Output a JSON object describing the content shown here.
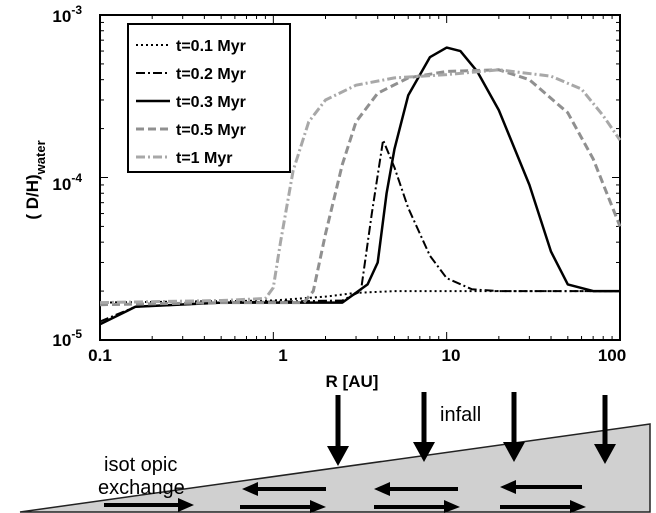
{
  "chart_data": {
    "type": "line",
    "xlabel": "R [AU]",
    "ylabel_main": "( D/H)",
    "ylabel_sub": "water",
    "x_scale": "log",
    "y_scale": "log",
    "xlim": [
      0.1,
      100
    ],
    "ylim": [
      1e-05,
      0.001
    ],
    "x_ticks": [
      {
        "value": 0.1,
        "label": "0.1"
      },
      {
        "value": 1,
        "label": "1"
      },
      {
        "value": 10,
        "label": "10"
      },
      {
        "value": 100,
        "label": "100"
      }
    ],
    "y_ticks": [
      {
        "value": 1e-05,
        "base": "10",
        "exp": "-5"
      },
      {
        "value": 0.0001,
        "base": "10",
        "exp": "-4"
      },
      {
        "value": 0.001,
        "base": "10",
        "exp": "-3"
      }
    ],
    "grid": false,
    "legend_position": "top-left",
    "series": [
      {
        "name": "t=0.1 Myr",
        "color": "#000000",
        "dash": "dotted",
        "points": [
          [
            0.1,
            1.7e-05
          ],
          [
            1,
            1.75e-05
          ],
          [
            2,
            1.85e-05
          ],
          [
            3,
            1.95e-05
          ],
          [
            5,
            2e-05
          ],
          [
            100,
            2e-05
          ]
        ]
      },
      {
        "name": "t=0.2 Myr",
        "color": "#000000",
        "dash": "dashdot",
        "points": [
          [
            0.1,
            1.3e-05
          ],
          [
            0.16,
            1.6e-05
          ],
          [
            0.5,
            1.7e-05
          ],
          [
            2.5,
            1.75e-05
          ],
          [
            3.2,
            2e-05
          ],
          [
            3.7,
            6e-05
          ],
          [
            4.3,
            0.00017
          ],
          [
            5,
            0.000115
          ],
          [
            6,
            6.5e-05
          ],
          [
            8,
            3.3e-05
          ],
          [
            10,
            2.4e-05
          ],
          [
            14,
            2.05e-05
          ],
          [
            20,
            2e-05
          ],
          [
            100,
            2e-05
          ]
        ]
      },
      {
        "name": "t=0.3 Myr",
        "color": "#000000",
        "dash": "solid",
        "points": [
          [
            0.1,
            1.25e-05
          ],
          [
            0.16,
            1.6e-05
          ],
          [
            0.5,
            1.7e-05
          ],
          [
            2.5,
            1.7e-05
          ],
          [
            3.5,
            2.2e-05
          ],
          [
            4,
            3e-05
          ],
          [
            4.5,
            8e-05
          ],
          [
            5,
            0.00015
          ],
          [
            6,
            0.00032
          ],
          [
            8,
            0.00055
          ],
          [
            10,
            0.00063
          ],
          [
            12,
            0.0006
          ],
          [
            15,
            0.00045
          ],
          [
            20,
            0.00026
          ],
          [
            30,
            9e-05
          ],
          [
            40,
            3.5e-05
          ],
          [
            50,
            2.2e-05
          ],
          [
            70,
            2e-05
          ],
          [
            100,
            2e-05
          ]
        ]
      },
      {
        "name": "t=0.5 Myr",
        "color": "#909090",
        "dash": "dashed",
        "points": [
          [
            0.1,
            1.65e-05
          ],
          [
            0.5,
            1.7e-05
          ],
          [
            1.5,
            1.7e-05
          ],
          [
            1.7,
            2e-05
          ],
          [
            2,
            4.5e-05
          ],
          [
            2.5,
            0.00012
          ],
          [
            3,
            0.00022
          ],
          [
            4,
            0.00033
          ],
          [
            6,
            0.00041
          ],
          [
            10,
            0.00045
          ],
          [
            20,
            0.00046
          ],
          [
            30,
            0.0004
          ],
          [
            50,
            0.00025
          ],
          [
            70,
            0.00013
          ],
          [
            100,
            5e-05
          ]
        ]
      },
      {
        "name": "t=1 Myr",
        "color": "#a8a8a8",
        "dash": "dashdot",
        "points": [
          [
            0.1,
            1.7e-05
          ],
          [
            0.5,
            1.75e-05
          ],
          [
            0.9,
            1.8e-05
          ],
          [
            1,
            2.1e-05
          ],
          [
            1.1,
            4e-05
          ],
          [
            1.3,
            0.00011
          ],
          [
            1.6,
            0.00022
          ],
          [
            2,
            0.0003
          ],
          [
            3,
            0.00037
          ],
          [
            5,
            0.00041
          ],
          [
            10,
            0.00043
          ],
          [
            20,
            0.00046
          ],
          [
            40,
            0.00042
          ],
          [
            60,
            0.00035
          ],
          [
            80,
            0.00024
          ],
          [
            100,
            0.00017
          ]
        ]
      }
    ]
  },
  "schematic": {
    "infall_label": "infall",
    "exchange_label_line1": "isot opic",
    "exchange_label_line2": "exchange"
  }
}
